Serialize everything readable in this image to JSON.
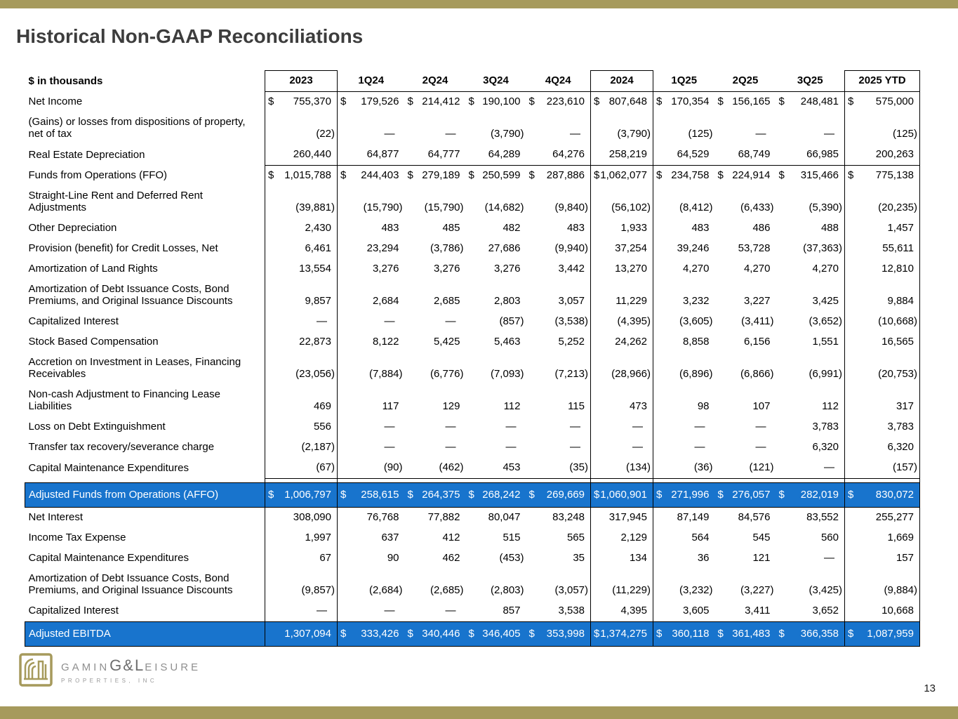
{
  "page": {
    "title": "Historical Non-GAAP Reconciliations",
    "page_number": "13"
  },
  "theme": {
    "accent_gold": "#A69A5C",
    "highlight_blue": "#1874CD",
    "title_color": "#3D3D3D"
  },
  "logo": {
    "text_pre": "GAMIN",
    "text_mid": "G&L",
    "text_post": "EISURE",
    "subtitle": "PROPERTIES, INC"
  },
  "table": {
    "unit_label": "$ in thousands",
    "columns": [
      "2023",
      "1Q24",
      "2Q24",
      "3Q24",
      "4Q24",
      "2024",
      "1Q25",
      "2Q25",
      "3Q25",
      "2025 YTD"
    ],
    "boxed_columns": [
      0,
      5,
      9
    ],
    "rows": [
      {
        "label": "Net Income",
        "cells": [
          "$ 755,370",
          "$ 179,526",
          "$ 214,412",
          "$ 190,100",
          "$ 223,610",
          "$ 807,648",
          "$ 170,354",
          "$ 156,165",
          "$ 248,481",
          "$ 575,000"
        ]
      },
      {
        "label": "(Gains) or losses from dispositions of property, net of tax",
        "cells": [
          "(22)",
          "—",
          "—",
          "(3,790)",
          "—",
          "(3,790)",
          "(125)",
          "—",
          "—",
          "(125)"
        ]
      },
      {
        "label": "Real Estate Depreciation",
        "underline": true,
        "cells": [
          "260,440",
          "64,877",
          "64,777",
          "64,289",
          "64,276",
          "258,219",
          "64,529",
          "68,749",
          "66,985",
          "200,263"
        ]
      },
      {
        "label": "Funds from Operations (FFO)",
        "cells": [
          "$ 1,015,788",
          "$ 244,403",
          "$ 279,189",
          "$ 250,599",
          "$ 287,886",
          "$ 1,062,077",
          "$ 234,758",
          "$ 224,914",
          "$ 315,466",
          "$ 775,138"
        ]
      },
      {
        "label": "Straight-Line Rent and Deferred Rent Adjustments",
        "cells": [
          "(39,881)",
          "(15,790)",
          "(15,790)",
          "(14,682)",
          "(9,840)",
          "(56,102)",
          "(8,412)",
          "(6,433)",
          "(5,390)",
          "(20,235)"
        ]
      },
      {
        "label": "Other Depreciation",
        "cells": [
          "2,430",
          "483",
          "485",
          "482",
          "483",
          "1,933",
          "483",
          "486",
          "488",
          "1,457"
        ]
      },
      {
        "label": "Provision (benefit) for Credit Losses, Net",
        "cells": [
          "6,461",
          "23,294",
          "(3,786)",
          "27,686",
          "(9,940)",
          "37,254",
          "39,246",
          "53,728",
          "(37,363)",
          "55,611"
        ]
      },
      {
        "label": "Amortization of Land Rights",
        "cells": [
          "13,554",
          "3,276",
          "3,276",
          "3,276",
          "3,442",
          "13,270",
          "4,270",
          "4,270",
          "4,270",
          "12,810"
        ]
      },
      {
        "label": "Amortization of Debt Issuance Costs, Bond Premiums, and Original Issuance Discounts",
        "cells": [
          "9,857",
          "2,684",
          "2,685",
          "2,803",
          "3,057",
          "11,229",
          "3,232",
          "3,227",
          "3,425",
          "9,884"
        ]
      },
      {
        "label": "Capitalized Interest",
        "cells": [
          "—",
          "—",
          "—",
          "(857)",
          "(3,538)",
          "(4,395)",
          "(3,605)",
          "(3,411)",
          "(3,652)",
          "(10,668)"
        ]
      },
      {
        "label": "Stock Based Compensation",
        "cells": [
          "22,873",
          "8,122",
          "5,425",
          "5,463",
          "5,252",
          "24,262",
          "8,858",
          "6,156",
          "1,551",
          "16,565"
        ]
      },
      {
        "label": "Accretion on Investment in Leases, Financing Receivables",
        "cells": [
          "(23,056)",
          "(7,884)",
          "(6,776)",
          "(7,093)",
          "(7,213)",
          "(28,966)",
          "(6,896)",
          "(6,866)",
          "(6,991)",
          "(20,753)"
        ]
      },
      {
        "label": "Non-cash Adjustment to Financing Lease Liabilities",
        "cells": [
          "469",
          "117",
          "129",
          "112",
          "115",
          "473",
          "98",
          "107",
          "112",
          "317"
        ]
      },
      {
        "label": "Loss on Debt Extinguishment",
        "cells": [
          "556",
          "—",
          "—",
          "—",
          "—",
          "—",
          "—",
          "—",
          "3,783",
          "3,783"
        ]
      },
      {
        "label": "Transfer tax recovery/severance charge",
        "cells": [
          "(2,187)",
          "—",
          "—",
          "—",
          "—",
          "—",
          "—",
          "—",
          "6,320",
          "6,320"
        ]
      },
      {
        "label": "Capital Maintenance Expenditures",
        "underline": true,
        "cells": [
          "(67)",
          "(90)",
          "(462)",
          "453",
          "(35)",
          "(134)",
          "(36)",
          "(121)",
          "—",
          "(157)"
        ]
      },
      {
        "label": "Adjusted Funds from Operations (AFFO)",
        "emphasis": "highlight",
        "gap_before": true,
        "cells": [
          "$ 1,006,797",
          "$ 258,615",
          "$ 264,375",
          "$ 268,242",
          "$ 269,669",
          "$ 1,060,901",
          "$ 271,996",
          "$ 276,057",
          "$ 282,019",
          "$ 830,072"
        ]
      },
      {
        "label": "Net Interest",
        "cells": [
          "308,090",
          "76,768",
          "77,882",
          "80,047",
          "83,248",
          "317,945",
          "87,149",
          "84,576",
          "83,552",
          "255,277"
        ]
      },
      {
        "label": "Income Tax Expense",
        "cells": [
          "1,997",
          "637",
          "412",
          "515",
          "565",
          "2,129",
          "564",
          "545",
          "560",
          "1,669"
        ]
      },
      {
        "label": "Capital Maintenance Expenditures",
        "cells": [
          "67",
          "90",
          "462",
          "(453)",
          "35",
          "134",
          "36",
          "121",
          "—",
          "157"
        ]
      },
      {
        "label": "Amortization of Debt Issuance Costs, Bond Premiums, and Original Issuance Discounts",
        "cells": [
          "(9,857)",
          "(2,684)",
          "(2,685)",
          "(2,803)",
          "(3,057)",
          "(11,229)",
          "(3,232)",
          "(3,227)",
          "(3,425)",
          "(9,884)"
        ]
      },
      {
        "label": "Capitalized Interest",
        "underline": true,
        "cells": [
          "—",
          "—",
          "—",
          "857",
          "3,538",
          "4,395",
          "3,605",
          "3,411",
          "3,652",
          "10,668"
        ]
      },
      {
        "label": "Adjusted EBITDA",
        "emphasis": "highlight",
        "cells": [
          "1,307,094",
          "$ 333,426",
          "$ 340,446",
          "$ 346,405",
          "$ 353,998",
          "$ 1,374,275",
          "$ 360,118",
          "$ 361,483",
          "$ 366,358",
          "$ 1,087,959"
        ]
      }
    ]
  }
}
